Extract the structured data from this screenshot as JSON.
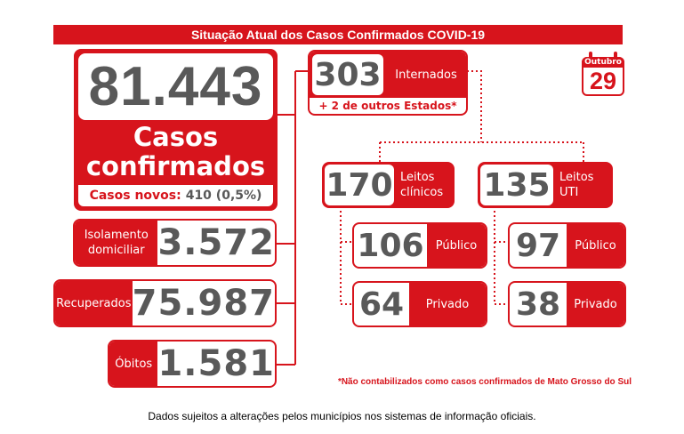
{
  "header": {
    "title": "Situação Atual dos Casos Confirmados COVID-19"
  },
  "date": {
    "month": "Outubro",
    "day": "29"
  },
  "confirmed": {
    "total": "81.443",
    "label_line1": "Casos",
    "label_line2": "confirmados",
    "new_label": "Casos novos:",
    "new_value": "410 (0,5%)"
  },
  "isolation": {
    "label_line1": "Isolamento",
    "label_line2": "domiciliar",
    "value": "3.572"
  },
  "recovered": {
    "label": "Recuperados",
    "value": "75.987"
  },
  "deaths": {
    "label": "Óbitos",
    "value": "1.581"
  },
  "hospitalized": {
    "value": "303",
    "label": "Internados",
    "note": "+ 2 de outros Estados*"
  },
  "clinical_beds": {
    "value": "170",
    "label_line1": "Leitos",
    "label_line2": "clínicos",
    "public": {
      "value": "106",
      "label": "Público"
    },
    "private": {
      "value": "64",
      "label": "Privado"
    }
  },
  "icu_beds": {
    "value": "135",
    "label_line1": "Leitos",
    "label_line2": "UTI",
    "public": {
      "value": "97",
      "label": "Público"
    },
    "private": {
      "value": "38",
      "label": "Privado"
    }
  },
  "footnote": "*Não contabilizados como casos confirmados de Mato Grosso do Sul",
  "disclaimer": "Dados sujeitos a alterações pelos municípios nos sistemas de informação oficiais.",
  "colors": {
    "accent": "#d7141c",
    "number": "#595959"
  }
}
